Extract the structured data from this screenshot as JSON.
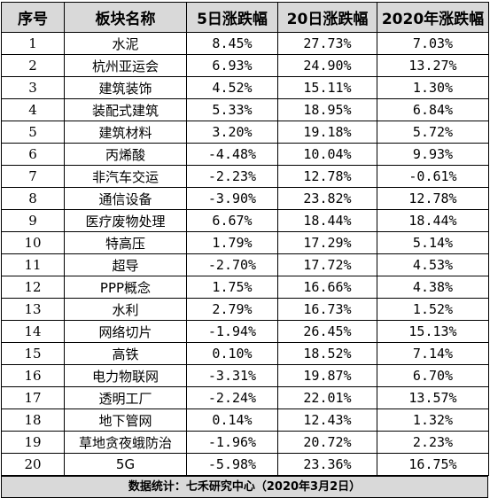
{
  "columns": [
    "序号",
    "板块名称",
    "5日涨跌幅",
    "20日涨跌幅",
    "2020年涨跌幅"
  ],
  "rows": [
    {
      "idx": "1",
      "name": "水泥",
      "d5": "8.45%",
      "d20": "27.73%",
      "y2020": "7.03%"
    },
    {
      "idx": "2",
      "name": "杭州亚运会",
      "d5": "6.93%",
      "d20": "24.90%",
      "y2020": "13.27%"
    },
    {
      "idx": "3",
      "name": "建筑装饰",
      "d5": "4.52%",
      "d20": "15.11%",
      "y2020": "1.30%"
    },
    {
      "idx": "4",
      "name": "装配式建筑",
      "d5": "5.33%",
      "d20": "18.95%",
      "y2020": "6.84%"
    },
    {
      "idx": "5",
      "name": "建筑材料",
      "d5": "3.20%",
      "d20": "19.18%",
      "y2020": "5.72%"
    },
    {
      "idx": "6",
      "name": "丙烯酸",
      "d5": "-4.48%",
      "d20": "10.04%",
      "y2020": "9.93%"
    },
    {
      "idx": "7",
      "name": "非汽车交运",
      "d5": "-2.23%",
      "d20": "12.78%",
      "y2020": "-0.61%"
    },
    {
      "idx": "8",
      "name": "通信设备",
      "d5": "-3.90%",
      "d20": "23.82%",
      "y2020": "12.78%"
    },
    {
      "idx": "9",
      "name": "医疗废物处理",
      "d5": "6.67%",
      "d20": "18.44%",
      "y2020": "18.44%"
    },
    {
      "idx": "10",
      "name": "特高压",
      "d5": "1.79%",
      "d20": "17.29%",
      "y2020": "5.14%"
    },
    {
      "idx": "11",
      "name": "超导",
      "d5": "-2.70%",
      "d20": "17.72%",
      "y2020": "4.53%"
    },
    {
      "idx": "12",
      "name": "PPP概念",
      "d5": "1.75%",
      "d20": "16.66%",
      "y2020": "4.38%"
    },
    {
      "idx": "13",
      "name": "水利",
      "d5": "2.79%",
      "d20": "16.73%",
      "y2020": "1.52%"
    },
    {
      "idx": "14",
      "name": "网络切片",
      "d5": "-1.94%",
      "d20": "26.45%",
      "y2020": "15.13%"
    },
    {
      "idx": "15",
      "name": "高铁",
      "d5": "0.10%",
      "d20": "18.52%",
      "y2020": "7.14%"
    },
    {
      "idx": "16",
      "name": "电力物联网",
      "d5": "-3.31%",
      "d20": "19.87%",
      "y2020": "6.70%"
    },
    {
      "idx": "17",
      "name": "透明工厂",
      "d5": "-2.24%",
      "d20": "22.01%",
      "y2020": "13.57%"
    },
    {
      "idx": "18",
      "name": "地下管网",
      "d5": "0.14%",
      "d20": "12.43%",
      "y2020": "1.32%"
    },
    {
      "idx": "19",
      "name": "草地贪夜蛾防治",
      "d5": "-1.96%",
      "d20": "20.72%",
      "y2020": "2.23%"
    },
    {
      "idx": "20",
      "name": "5G",
      "d5": "-5.98%",
      "d20": "23.36%",
      "y2020": "16.75%"
    }
  ],
  "footer": "数据统计：七禾研究中心（2020年3月2日）",
  "colors": {
    "header_bg": "#d9d9d9",
    "border": "#000000",
    "text": "#000000"
  }
}
